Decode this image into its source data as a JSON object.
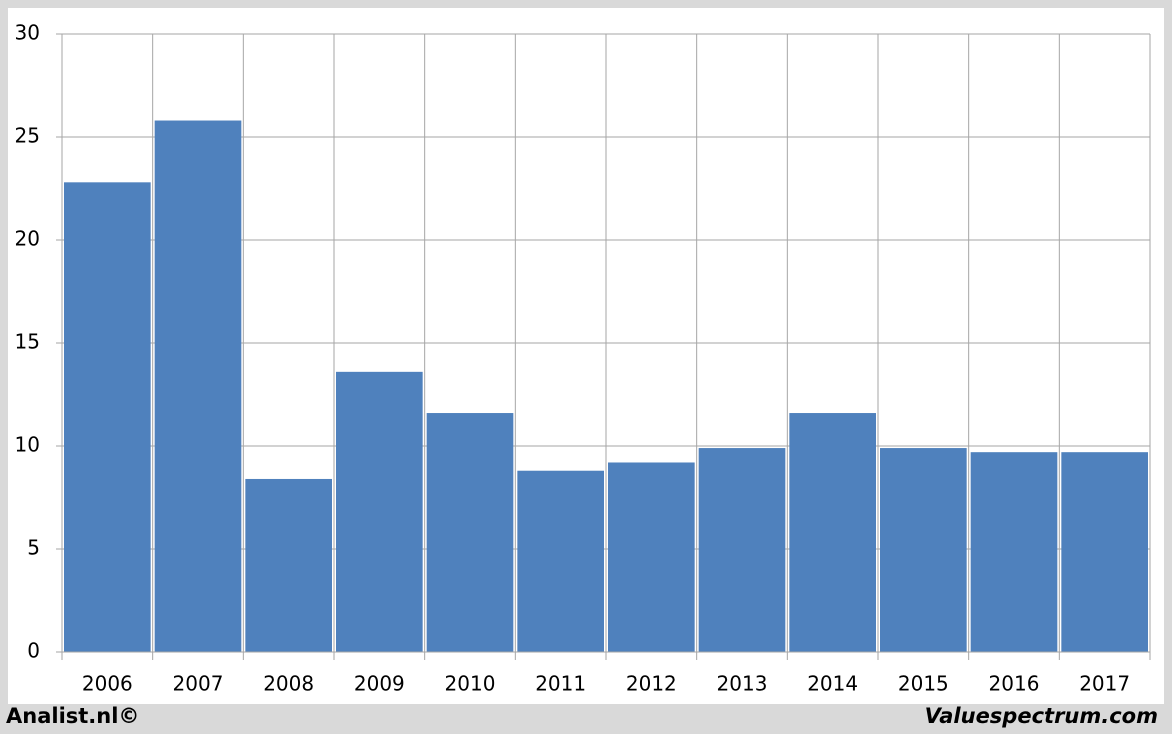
{
  "chart_data": {
    "type": "bar",
    "categories": [
      "2006",
      "2007",
      "2008",
      "2009",
      "2010",
      "2011",
      "2012",
      "2013",
      "2014",
      "2015",
      "2016",
      "2017"
    ],
    "values": [
      22.8,
      25.8,
      8.4,
      13.6,
      11.6,
      8.8,
      9.2,
      9.9,
      11.6,
      9.9,
      9.7,
      9.7
    ],
    "color": "#4f81bd",
    "ylim": [
      0,
      30
    ],
    "yticks": [
      0,
      5,
      10,
      15,
      20,
      25,
      30
    ],
    "grid": true,
    "footer_left": "Analist.nl©",
    "footer_right": "Valuespectrum.com"
  }
}
